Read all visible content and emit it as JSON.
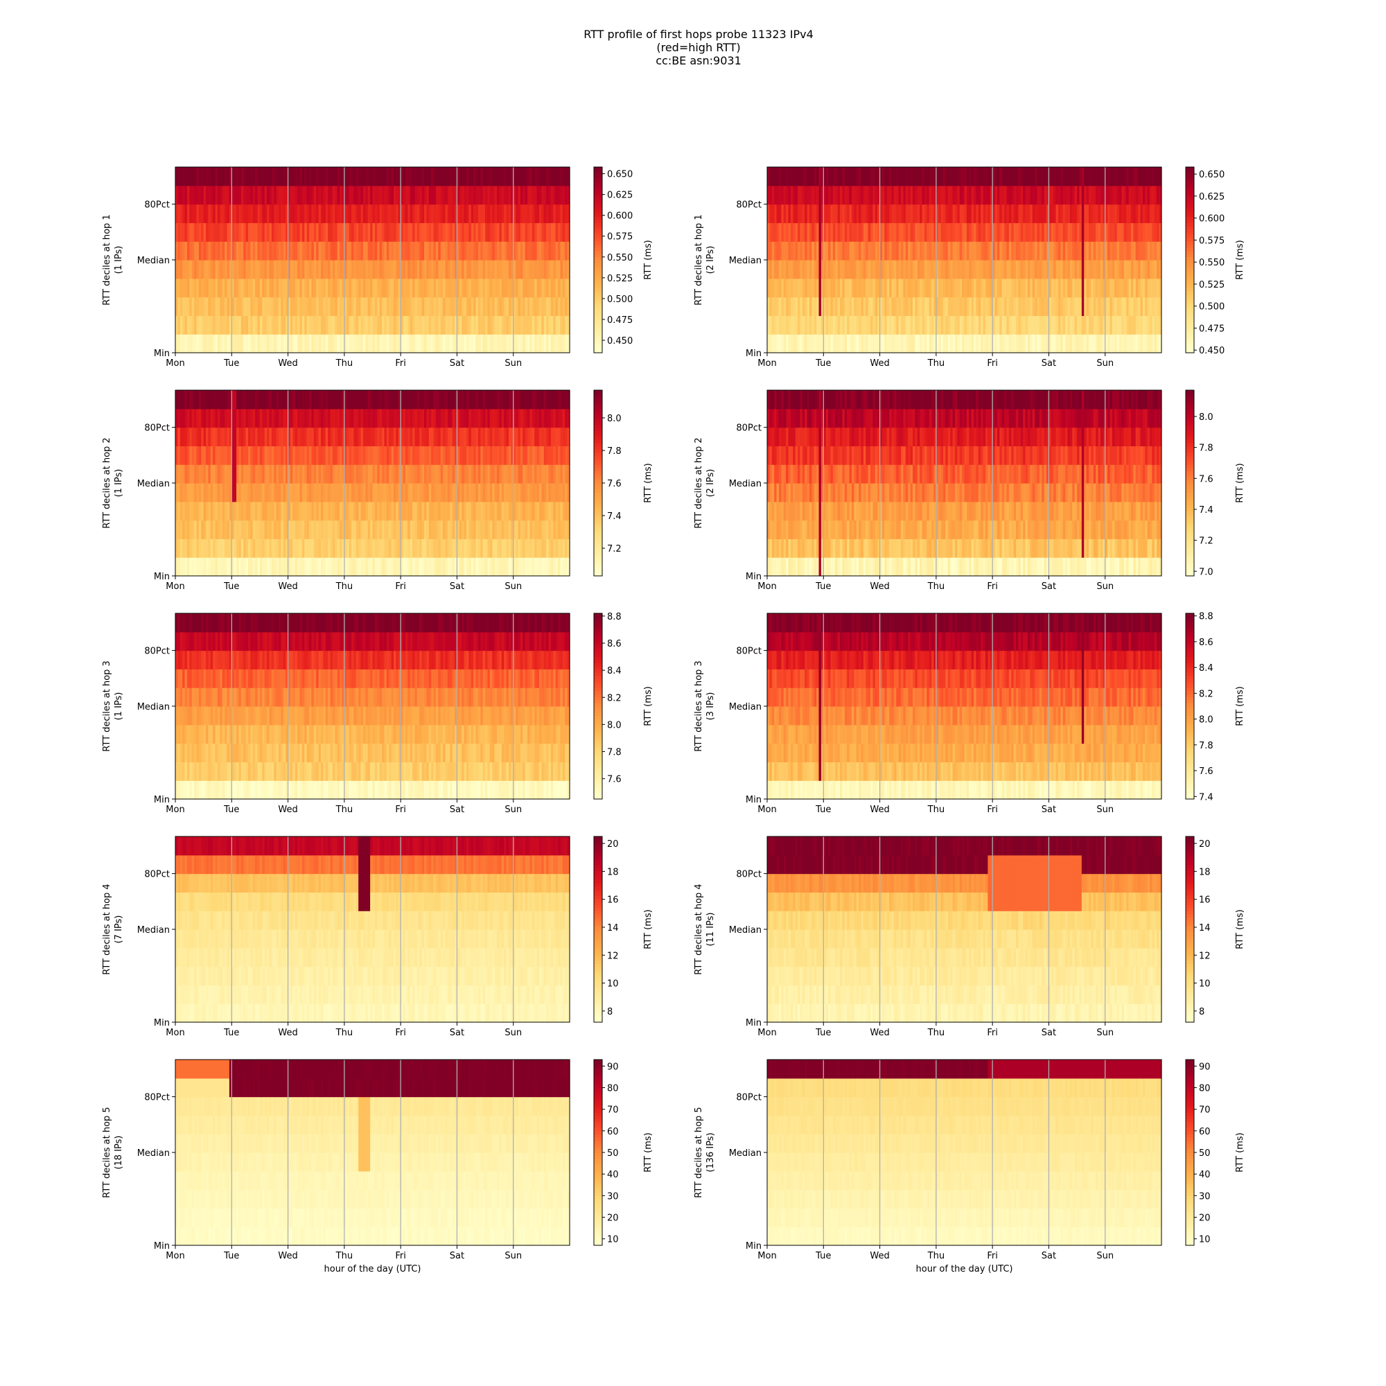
{
  "figure": {
    "title_lines": [
      "RTT profile of first hops probe 11323 IPv4",
      "(red=high RTT)",
      "cc:BE asn:9031"
    ]
  },
  "colors": {
    "colormap_YlOrRd": [
      "#ffffcc",
      "#ffeda0",
      "#fed976",
      "#feb24c",
      "#fd8d3c",
      "#fc4e2a",
      "#e31a1c",
      "#bd0026",
      "#800026"
    ],
    "grid_line": "#b0b0b0",
    "axis": "#000000"
  },
  "chart_data": [
    {
      "type": "heatmap",
      "hop": 1,
      "ylabel": "RTT deciles at hop 1",
      "ylabel_sub": "(1 IPs)",
      "xlabel": "",
      "x_ticks": [
        "Mon",
        "Tue",
        "Wed",
        "Thu",
        "Fri",
        "Sat",
        "Sun"
      ],
      "y_ticks": [
        "Min",
        "Median",
        "80Pct"
      ],
      "colorbar_label": "RTT (ms)",
      "colorbar_ticks": [
        "0.450",
        "0.475",
        "0.500",
        "0.525",
        "0.550",
        "0.575",
        "0.600",
        "0.625",
        "0.650"
      ],
      "vmin": 0.435,
      "vmax": 0.658,
      "decile_levels": [
        0.45,
        0.5,
        0.51,
        0.52,
        0.54,
        0.56,
        0.58,
        0.6,
        0.62,
        0.66
      ],
      "noise": 0.012,
      "events": []
    },
    {
      "type": "heatmap",
      "hop": 1,
      "ylabel": "RTT deciles at hop 1",
      "ylabel_sub": "(2 IPs)",
      "xlabel": "",
      "x_ticks": [
        "Mon",
        "Tue",
        "Wed",
        "Thu",
        "Fri",
        "Sat",
        "Sun"
      ],
      "y_ticks": [
        "Min",
        "Median",
        "80Pct"
      ],
      "colorbar_label": "RTT (ms)",
      "colorbar_ticks": [
        "0.450",
        "0.475",
        "0.500",
        "0.525",
        "0.550",
        "0.575",
        "0.600",
        "0.625",
        "0.650"
      ],
      "vmin": 0.447,
      "vmax": 0.658,
      "decile_levels": [
        0.46,
        0.5,
        0.51,
        0.52,
        0.54,
        0.56,
        0.58,
        0.6,
        0.62,
        0.66
      ],
      "noise": 0.012,
      "events": [
        {
          "x_day": 0.9,
          "width_day": 0.05,
          "value": 0.64,
          "from_decile": 2,
          "to_decile": 10
        },
        {
          "x_day": 5.55,
          "width_day": 0.05,
          "value": 0.64,
          "from_decile": 2,
          "to_decile": 10
        }
      ]
    },
    {
      "type": "heatmap",
      "hop": 2,
      "ylabel": "RTT deciles at hop 2",
      "ylabel_sub": "(1 IPs)",
      "xlabel": "",
      "x_ticks": [
        "Mon",
        "Tue",
        "Wed",
        "Thu",
        "Fri",
        "Sat",
        "Sun"
      ],
      "y_ticks": [
        "Min",
        "Median",
        "80Pct"
      ],
      "colorbar_label": "RTT (ms)",
      "colorbar_ticks": [
        "7.2",
        "7.4",
        "7.6",
        "7.8",
        "8.0"
      ],
      "vmin": 7.03,
      "vmax": 8.17,
      "decile_levels": [
        7.1,
        7.35,
        7.4,
        7.45,
        7.55,
        7.62,
        7.72,
        7.82,
        7.95,
        8.17
      ],
      "noise": 0.06,
      "events": [
        {
          "x_day": 1.0,
          "width_day": 0.05,
          "value": 8.0,
          "from_decile": 4,
          "to_decile": 10
        }
      ]
    },
    {
      "type": "heatmap",
      "hop": 2,
      "ylabel": "RTT deciles at hop 2",
      "ylabel_sub": "(2 IPs)",
      "xlabel": "",
      "x_ticks": [
        "Mon",
        "Tue",
        "Wed",
        "Thu",
        "Fri",
        "Sat",
        "Sun"
      ],
      "y_ticks": [
        "Min",
        "Median",
        "80Pct"
      ],
      "colorbar_label": "RTT (ms)",
      "colorbar_ticks": [
        "7.0",
        "7.2",
        "7.4",
        "7.6",
        "7.8",
        "8.0"
      ],
      "vmin": 6.97,
      "vmax": 8.17,
      "decile_levels": [
        7.05,
        7.35,
        7.45,
        7.5,
        7.6,
        7.68,
        7.78,
        7.88,
        8.0,
        8.17
      ],
      "noise": 0.08,
      "events": [
        {
          "x_day": 0.9,
          "width_day": 0.05,
          "value": 8.05,
          "from_decile": 0,
          "to_decile": 10
        },
        {
          "x_day": 5.55,
          "width_day": 0.05,
          "value": 8.05,
          "from_decile": 1,
          "to_decile": 10
        }
      ]
    },
    {
      "type": "heatmap",
      "hop": 3,
      "ylabel": "RTT deciles at hop 3",
      "ylabel_sub": "(1 IPs)",
      "xlabel": "",
      "x_ticks": [
        "Mon",
        "Tue",
        "Wed",
        "Thu",
        "Fri",
        "Sat",
        "Sun"
      ],
      "y_ticks": [
        "Min",
        "Median",
        "80Pct"
      ],
      "colorbar_label": "RTT (ms)",
      "colorbar_ticks": [
        "7.6",
        "7.8",
        "8.0",
        "8.2",
        "8.4",
        "8.6",
        "8.8"
      ],
      "vmin": 7.45,
      "vmax": 8.82,
      "decile_levels": [
        7.5,
        7.85,
        7.9,
        7.95,
        8.05,
        8.15,
        8.25,
        8.4,
        8.6,
        8.82
      ],
      "noise": 0.07,
      "events": []
    },
    {
      "type": "heatmap",
      "hop": 3,
      "ylabel": "RTT deciles at hop 3",
      "ylabel_sub": "(3 IPs)",
      "xlabel": "",
      "x_ticks": [
        "Mon",
        "Tue",
        "Wed",
        "Thu",
        "Fri",
        "Sat",
        "Sun"
      ],
      "y_ticks": [
        "Min",
        "Median",
        "80Pct"
      ],
      "colorbar_label": "RTT (ms)",
      "colorbar_ticks": [
        "7.4",
        "7.6",
        "7.8",
        "8.0",
        "8.2",
        "8.4",
        "8.6",
        "8.8"
      ],
      "vmin": 7.38,
      "vmax": 8.82,
      "decile_levels": [
        7.45,
        7.85,
        7.95,
        8.0,
        8.1,
        8.2,
        8.3,
        8.45,
        8.65,
        8.82
      ],
      "noise": 0.08,
      "events": [
        {
          "x_day": 0.9,
          "width_day": 0.05,
          "value": 8.75,
          "from_decile": 1,
          "to_decile": 10
        },
        {
          "x_day": 5.55,
          "width_day": 0.05,
          "value": 8.75,
          "from_decile": 3,
          "to_decile": 10
        }
      ]
    },
    {
      "type": "heatmap",
      "hop": 4,
      "ylabel": "RTT deciles at hop 4",
      "ylabel_sub": "(7 IPs)",
      "xlabel": "",
      "x_ticks": [
        "Mon",
        "Tue",
        "Wed",
        "Thu",
        "Fri",
        "Sat",
        "Sun"
      ],
      "y_ticks": [
        "Min",
        "Median",
        "80Pct"
      ],
      "colorbar_label": "RTT (ms)",
      "colorbar_ticks": [
        "8",
        "10",
        "12",
        "14",
        "16",
        "18",
        "20"
      ],
      "vmin": 7.2,
      "vmax": 20.5,
      "decile_levels": [
        8.0,
        8.3,
        8.6,
        8.9,
        9.2,
        9.6,
        10.2,
        11.5,
        14.5,
        18.5
      ],
      "noise": 0.4,
      "events": [
        {
          "x_day": 3.25,
          "width_day": 0.2,
          "value": 20.5,
          "from_decile": 6,
          "to_decile": 10
        }
      ]
    },
    {
      "type": "heatmap",
      "hop": 4,
      "ylabel": "RTT deciles at hop 4",
      "ylabel_sub": "(11 IPs)",
      "xlabel": "",
      "x_ticks": [
        "Mon",
        "Tue",
        "Wed",
        "Thu",
        "Fri",
        "Sat",
        "Sun"
      ],
      "y_ticks": [
        "Min",
        "Median",
        "80Pct"
      ],
      "colorbar_label": "RTT (ms)",
      "colorbar_ticks": [
        "8",
        "10",
        "12",
        "14",
        "16",
        "18",
        "20"
      ],
      "vmin": 7.2,
      "vmax": 20.5,
      "decile_levels": [
        8.2,
        8.6,
        9.0,
        9.4,
        9.8,
        10.4,
        11.5,
        13.5,
        20.5,
        20.5
      ],
      "noise": 0.5,
      "events": [
        {
          "x_day": 3.9,
          "width_day": 1.65,
          "value": 14.8,
          "from_decile": 6,
          "to_decile": 9
        }
      ]
    },
    {
      "type": "heatmap",
      "hop": 5,
      "ylabel": "RTT deciles at hop 5",
      "ylabel_sub": "(18 IPs)",
      "xlabel": "hour of the day (UTC)",
      "x_ticks": [
        "Mon",
        "Tue",
        "Wed",
        "Thu",
        "Fri",
        "Sat",
        "Sun"
      ],
      "y_ticks": [
        "Min",
        "Median",
        "80Pct"
      ],
      "colorbar_label": "RTT (ms)",
      "colorbar_ticks": [
        "10",
        "20",
        "30",
        "40",
        "50",
        "60",
        "70",
        "80",
        "90"
      ],
      "vmin": 7.0,
      "vmax": 93.0,
      "decile_levels": [
        9.0,
        10.0,
        11.5,
        12.5,
        14.0,
        16.0,
        18.0,
        20.0,
        93.0,
        93.0
      ],
      "noise": 1.5,
      "events": [
        {
          "x_day": 0.0,
          "width_day": 0.95,
          "value": 22.0,
          "from_decile": 8,
          "to_decile": 9
        },
        {
          "x_day": 0.0,
          "width_day": 0.95,
          "value": 55.0,
          "from_decile": 9,
          "to_decile": 10
        },
        {
          "x_day": 3.25,
          "width_day": 0.2,
          "value": 35.0,
          "from_decile": 4,
          "to_decile": 8
        }
      ]
    },
    {
      "type": "heatmap",
      "hop": 5,
      "ylabel": "RTT deciles at hop 5",
      "ylabel_sub": "(136 IPs)",
      "xlabel": "hour of the day (UTC)",
      "x_ticks": [
        "Mon",
        "Tue",
        "Wed",
        "Thu",
        "Fri",
        "Sat",
        "Sun"
      ],
      "y_ticks": [
        "Min",
        "Median",
        "80Pct"
      ],
      "colorbar_label": "RTT (ms)",
      "colorbar_ticks": [
        "10",
        "20",
        "30",
        "40",
        "50",
        "60",
        "70",
        "80",
        "90"
      ],
      "vmin": 7.0,
      "vmax": 93.0,
      "decile_levels": [
        10.0,
        12.0,
        14.0,
        16.0,
        18.0,
        20.0,
        22.0,
        24.0,
        26.0,
        93.0
      ],
      "noise": 1.5,
      "events": [
        {
          "x_day": 3.9,
          "width_day": 3.1,
          "value": 85.0,
          "from_decile": 9,
          "to_decile": 10
        }
      ]
    }
  ]
}
